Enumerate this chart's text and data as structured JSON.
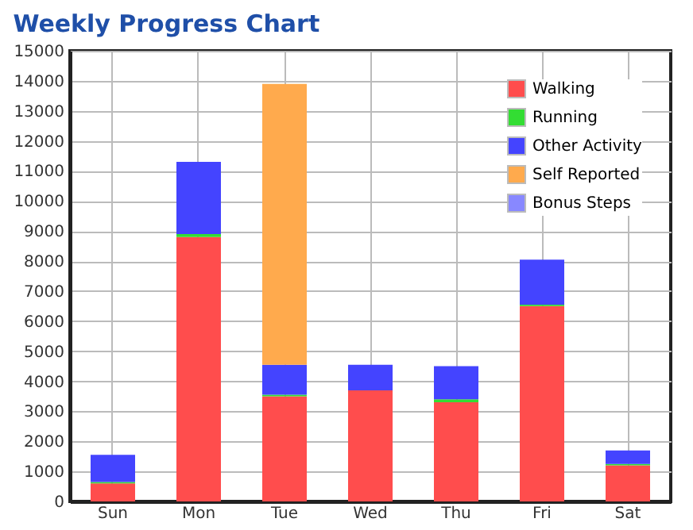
{
  "chart_data": {
    "type": "bar",
    "title": "Weekly Progress Chart",
    "stacked": true,
    "categories": [
      "Sun",
      "Mon",
      "Tue",
      "Wed",
      "Thu",
      "Fri",
      "Sat"
    ],
    "series": [
      {
        "name": "Walking",
        "color": "#ff4d4d",
        "values": [
          600,
          8800,
          3500,
          3700,
          3300,
          6500,
          1200
        ]
      },
      {
        "name": "Running",
        "color": "#33dd33",
        "values": [
          50,
          100,
          50,
          0,
          100,
          50,
          50
        ]
      },
      {
        "name": "Other Activity",
        "color": "#4444ff",
        "values": [
          900,
          2400,
          1000,
          850,
          1100,
          1500,
          450
        ]
      },
      {
        "name": "Self Reported",
        "color": "#ffaa4d",
        "values": [
          0,
          0,
          9350,
          0,
          0,
          0,
          0
        ]
      },
      {
        "name": "Bonus Steps",
        "color": "#8888ff",
        "values": [
          0,
          0,
          0,
          0,
          0,
          0,
          0
        ]
      }
    ],
    "ylim": [
      0,
      15000
    ],
    "yticks": [
      0,
      1000,
      2000,
      3000,
      4000,
      5000,
      6000,
      7000,
      8000,
      9000,
      10000,
      11000,
      12000,
      13000,
      14000,
      15000
    ],
    "grid": true,
    "legend": "top right"
  }
}
